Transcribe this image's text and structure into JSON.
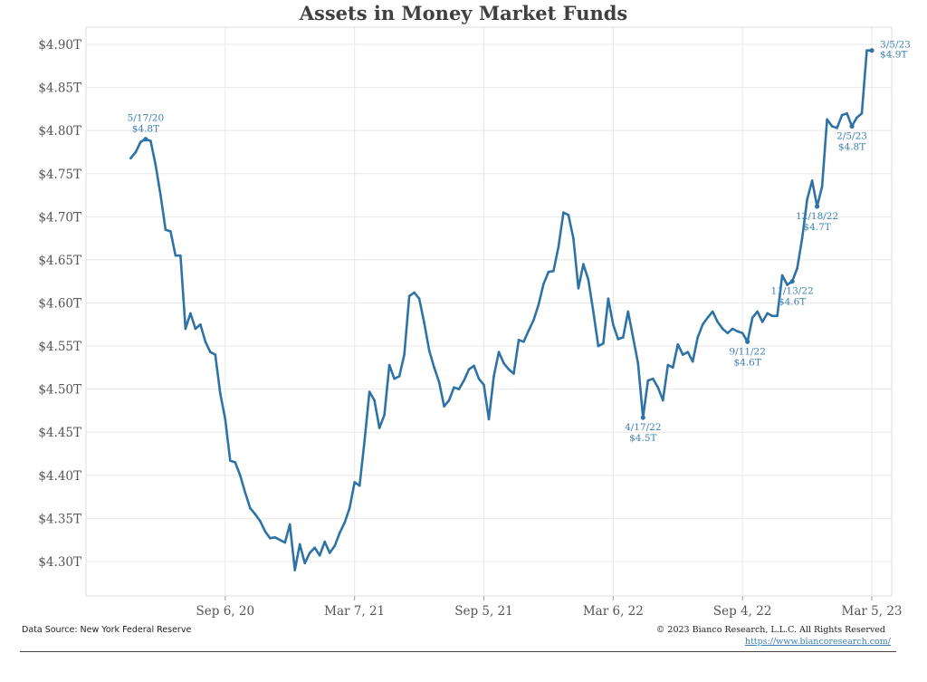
{
  "chart_data": {
    "type": "line",
    "title": "Assets in Money Market Funds",
    "ylabel": "",
    "xlabel": "",
    "ylim": [
      4.26,
      4.92
    ],
    "y_ticks": [
      4.3,
      4.35,
      4.4,
      4.45,
      4.5,
      4.55,
      4.6,
      4.65,
      4.7,
      4.75,
      4.8,
      4.85,
      4.9
    ],
    "y_tick_labels": [
      "$4.30T",
      "$4.35T",
      "$4.40T",
      "$4.45T",
      "$4.50T",
      "$4.55T",
      "$4.60T",
      "$4.65T",
      "$4.70T",
      "$4.75T",
      "$4.80T",
      "$4.85T",
      "$4.90T"
    ],
    "xlim": [
      "2020-02-23",
      "2023-04-02"
    ],
    "x_ticks": [
      "2020-09-06",
      "2021-03-07",
      "2021-09-05",
      "2022-03-06",
      "2022-09-04",
      "2023-03-05"
    ],
    "x_tick_labels": [
      "Sep 6, 20",
      "Mar 7, 21",
      "Sep 5, 21",
      "Mar 6, 22",
      "Sep 4, 22",
      "Mar 5, 23"
    ],
    "grid": true,
    "line_color": "#2f72a6",
    "series": [
      {
        "name": "",
        "points": [
          [
            "2020-04-26",
            4.768
          ],
          [
            "2020-05-03",
            4.775
          ],
          [
            "2020-05-10",
            4.787
          ],
          [
            "2020-05-17",
            4.79
          ],
          [
            "2020-05-24",
            4.788
          ],
          [
            "2020-05-31",
            4.76
          ],
          [
            "2020-06-07",
            4.725
          ],
          [
            "2020-06-14",
            4.685
          ],
          [
            "2020-06-21",
            4.683
          ],
          [
            "2020-06-28",
            4.655
          ],
          [
            "2020-07-05",
            4.655
          ],
          [
            "2020-07-12",
            4.57
          ],
          [
            "2020-07-19",
            4.588
          ],
          [
            "2020-07-26",
            4.57
          ],
          [
            "2020-08-02",
            4.575
          ],
          [
            "2020-08-09",
            4.555
          ],
          [
            "2020-08-16",
            4.543
          ],
          [
            "2020-08-23",
            4.54
          ],
          [
            "2020-08-30",
            4.495
          ],
          [
            "2020-09-06",
            4.465
          ],
          [
            "2020-09-13",
            4.417
          ],
          [
            "2020-09-20",
            4.415
          ],
          [
            "2020-09-27",
            4.4
          ],
          [
            "2020-10-04",
            4.38
          ],
          [
            "2020-10-11",
            4.362
          ],
          [
            "2020-10-18",
            4.355
          ],
          [
            "2020-10-25",
            4.347
          ],
          [
            "2020-11-01",
            4.335
          ],
          [
            "2020-11-08",
            4.327
          ],
          [
            "2020-11-15",
            4.328
          ],
          [
            "2020-11-22",
            4.325
          ],
          [
            "2020-11-29",
            4.322
          ],
          [
            "2020-12-06",
            4.343
          ],
          [
            "2020-12-13",
            4.29
          ],
          [
            "2020-12-20",
            4.32
          ],
          [
            "2020-12-27",
            4.298
          ],
          [
            "2021-01-03",
            4.31
          ],
          [
            "2021-01-10",
            4.316
          ],
          [
            "2021-01-17",
            4.307
          ],
          [
            "2021-01-24",
            4.323
          ],
          [
            "2021-01-31",
            4.31
          ],
          [
            "2021-02-07",
            4.318
          ],
          [
            "2021-02-14",
            4.333
          ],
          [
            "2021-02-21",
            4.345
          ],
          [
            "2021-02-28",
            4.362
          ],
          [
            "2021-03-07",
            4.392
          ],
          [
            "2021-03-14",
            4.388
          ],
          [
            "2021-03-21",
            4.44
          ],
          [
            "2021-03-28",
            4.497
          ],
          [
            "2021-04-04",
            4.487
          ],
          [
            "2021-04-11",
            4.455
          ],
          [
            "2021-04-18",
            4.47
          ],
          [
            "2021-04-25",
            4.528
          ],
          [
            "2021-05-02",
            4.512
          ],
          [
            "2021-05-09",
            4.515
          ],
          [
            "2021-05-16",
            4.54
          ],
          [
            "2021-05-23",
            4.608
          ],
          [
            "2021-05-30",
            4.612
          ],
          [
            "2021-06-06",
            4.605
          ],
          [
            "2021-06-13",
            4.577
          ],
          [
            "2021-06-20",
            4.545
          ],
          [
            "2021-06-27",
            4.525
          ],
          [
            "2021-07-04",
            4.508
          ],
          [
            "2021-07-11",
            4.48
          ],
          [
            "2021-07-18",
            4.487
          ],
          [
            "2021-07-25",
            4.502
          ],
          [
            "2021-08-01",
            4.5
          ],
          [
            "2021-08-08",
            4.51
          ],
          [
            "2021-08-15",
            4.523
          ],
          [
            "2021-08-22",
            4.527
          ],
          [
            "2021-08-29",
            4.512
          ],
          [
            "2021-09-05",
            4.505
          ],
          [
            "2021-09-12",
            4.465
          ],
          [
            "2021-09-19",
            4.515
          ],
          [
            "2021-09-26",
            4.543
          ],
          [
            "2021-10-03",
            4.53
          ],
          [
            "2021-10-10",
            4.523
          ],
          [
            "2021-10-17",
            4.518
          ],
          [
            "2021-10-24",
            4.557
          ],
          [
            "2021-10-31",
            4.555
          ],
          [
            "2021-11-07",
            4.568
          ],
          [
            "2021-11-14",
            4.58
          ],
          [
            "2021-11-21",
            4.598
          ],
          [
            "2021-11-28",
            4.622
          ],
          [
            "2021-12-05",
            4.636
          ],
          [
            "2021-12-12",
            4.637
          ],
          [
            "2021-12-19",
            4.665
          ],
          [
            "2021-12-26",
            4.705
          ],
          [
            "2022-01-02",
            4.702
          ],
          [
            "2022-01-09",
            4.675
          ],
          [
            "2022-01-16",
            4.617
          ],
          [
            "2022-01-23",
            4.645
          ],
          [
            "2022-01-30",
            4.627
          ],
          [
            "2022-02-06",
            4.59
          ],
          [
            "2022-02-13",
            4.55
          ],
          [
            "2022-02-20",
            4.553
          ],
          [
            "2022-02-27",
            4.605
          ],
          [
            "2022-03-06",
            4.575
          ],
          [
            "2022-03-13",
            4.558
          ],
          [
            "2022-03-20",
            4.56
          ],
          [
            "2022-03-27",
            4.59
          ],
          [
            "2022-04-03",
            4.56
          ],
          [
            "2022-04-10",
            4.53
          ],
          [
            "2022-04-17",
            4.467
          ],
          [
            "2022-04-24",
            4.51
          ],
          [
            "2022-05-01",
            4.512
          ],
          [
            "2022-05-08",
            4.502
          ],
          [
            "2022-05-15",
            4.487
          ],
          [
            "2022-05-22",
            4.528
          ],
          [
            "2022-05-29",
            4.525
          ],
          [
            "2022-06-05",
            4.552
          ],
          [
            "2022-06-12",
            4.54
          ],
          [
            "2022-06-19",
            4.543
          ],
          [
            "2022-06-26",
            4.532
          ],
          [
            "2022-07-03",
            4.56
          ],
          [
            "2022-07-10",
            4.575
          ],
          [
            "2022-07-17",
            4.583
          ],
          [
            "2022-07-24",
            4.59
          ],
          [
            "2022-07-31",
            4.578
          ],
          [
            "2022-08-07",
            4.57
          ],
          [
            "2022-08-14",
            4.565
          ],
          [
            "2022-08-21",
            4.57
          ],
          [
            "2022-08-28",
            4.567
          ],
          [
            "2022-09-04",
            4.565
          ],
          [
            "2022-09-11",
            4.555
          ],
          [
            "2022-09-18",
            4.583
          ],
          [
            "2022-09-25",
            4.59
          ],
          [
            "2022-10-02",
            4.578
          ],
          [
            "2022-10-09",
            4.588
          ],
          [
            "2022-10-16",
            4.585
          ],
          [
            "2022-10-23",
            4.585
          ],
          [
            "2022-10-30",
            4.632
          ],
          [
            "2022-11-06",
            4.621
          ],
          [
            "2022-11-13",
            4.625
          ],
          [
            "2022-11-20",
            4.64
          ],
          [
            "2022-11-27",
            4.675
          ],
          [
            "2022-12-04",
            4.72
          ],
          [
            "2022-12-11",
            4.742
          ],
          [
            "2022-12-18",
            4.712
          ],
          [
            "2022-12-25",
            4.735
          ],
          [
            "2023-01-01",
            4.813
          ],
          [
            "2023-01-08",
            4.805
          ],
          [
            "2023-01-15",
            4.803
          ],
          [
            "2023-01-22",
            4.818
          ],
          [
            "2023-01-29",
            4.82
          ],
          [
            "2023-02-05",
            4.805
          ],
          [
            "2023-02-12",
            4.815
          ],
          [
            "2023-02-19",
            4.82
          ],
          [
            "2023-02-26",
            4.893
          ],
          [
            "2023-03-05",
            4.893
          ]
        ]
      }
    ],
    "annotations": [
      {
        "date": "2020-05-17",
        "value": 4.79,
        "label_date": "5/17/20",
        "label_value": "$4.8T",
        "position": "above"
      },
      {
        "date": "2022-04-17",
        "value": 4.467,
        "label_date": "4/17/22",
        "label_value": "$4.5T",
        "position": "below"
      },
      {
        "date": "2022-09-11",
        "value": 4.555,
        "label_date": "9/11/22",
        "label_value": "$4.6T",
        "position": "below"
      },
      {
        "date": "2022-11-13",
        "value": 4.625,
        "label_date": "11/13/22",
        "label_value": "$4.6T",
        "position": "below"
      },
      {
        "date": "2022-12-18",
        "value": 4.712,
        "label_date": "12/18/22",
        "label_value": "$4.7T",
        "position": "below"
      },
      {
        "date": "2023-02-05",
        "value": 4.805,
        "label_date": "2/5/23",
        "label_value": "$4.8T",
        "position": "below"
      },
      {
        "date": "2023-03-05",
        "value": 4.893,
        "label_date": "3/5/23",
        "label_value": "$4.9T",
        "position": "right"
      }
    ]
  },
  "footer": {
    "source": "Data Source: New York Federal Reserve",
    "copyright": "© 2023 Bianco Research, L.L.C. All Rights Reserved",
    "url": "https://www.biancoresearch.com/"
  }
}
